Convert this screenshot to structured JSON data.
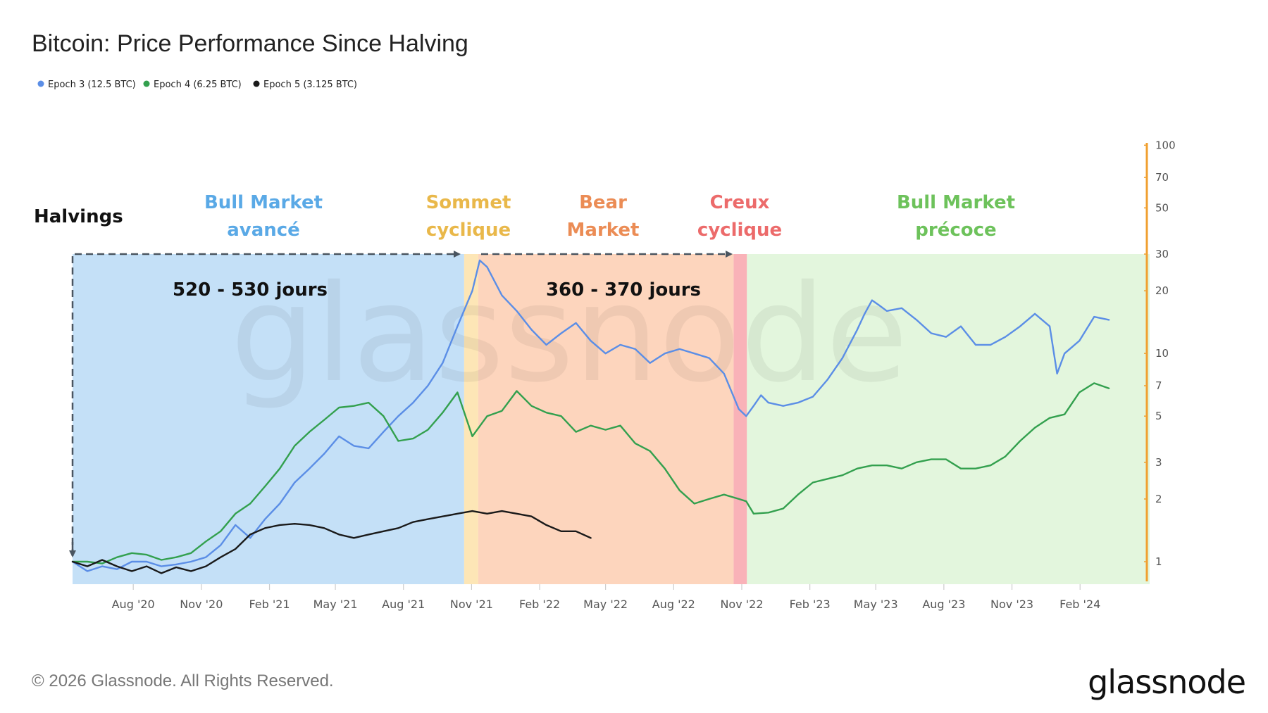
{
  "colors": {
    "epoch3": "#5b8ee6",
    "epoch4": "#33a04e",
    "epoch5": "#1a1a1a",
    "bull_late_bg": "#c4e0f7",
    "top_bg": "#fde6b6",
    "bear_bg": "#fdd5bd",
    "trough_bg": "#f9b2b8",
    "bull_early_bg": "#e3f6dd",
    "axis_right": "#f0a030",
    "bull_late_text": "#5aa9e6",
    "top_text": "#e9b84a",
    "bear_text": "#eb8c55",
    "trough_text": "#ec6b6b",
    "bull_early_text": "#6dc25b",
    "arrow": "#4a5560"
  },
  "chart_data": {
    "type": "line",
    "title": "Bitcoin: Price Performance Since Halving",
    "y_scale": "log",
    "ylim": [
      0.78,
      100
    ],
    "y_ticks": [
      1,
      2,
      3,
      5,
      7,
      10,
      20,
      30,
      50,
      70,
      100
    ],
    "y_tick_labels": [
      "1",
      "2",
      "3",
      "5",
      "7",
      "10",
      "20",
      "30",
      "50",
      "70",
      "100"
    ],
    "xlim": [
      0,
      1455
    ],
    "x_unit": "days since halving (aligned to Epoch 3 calendar, start May 11 2020)",
    "x_ticks": [
      82,
      174,
      266,
      355,
      447,
      539,
      631,
      720,
      812,
      904,
      996,
      1085,
      1177,
      1269,
      1361
    ],
    "x_tick_labels": [
      "Aug '20",
      "Nov '20",
      "Feb '21",
      "May '21",
      "Aug '21",
      "Nov '21",
      "Feb '22",
      "May '22",
      "Aug '22",
      "Nov '22",
      "Feb '23",
      "May '23",
      "Aug '23",
      "Nov '23",
      "Feb '24"
    ],
    "legend": [
      {
        "label": "Epoch 3 (12.5 BTC)",
        "color_key": "epoch3"
      },
      {
        "label": "Epoch 4 (6.25 BTC)",
        "color_key": "epoch4"
      },
      {
        "label": "Epoch 5 (3.125 BTC)",
        "color_key": "epoch5"
      }
    ],
    "series": [
      {
        "name": "Epoch 3 (12.5 BTC)",
        "color_key": "epoch3",
        "x": [
          0,
          20,
          40,
          60,
          80,
          100,
          120,
          140,
          160,
          180,
          200,
          220,
          240,
          260,
          280,
          300,
          320,
          340,
          360,
          380,
          400,
          420,
          440,
          460,
          480,
          500,
          520,
          540,
          550,
          560,
          580,
          600,
          620,
          640,
          660,
          680,
          700,
          720,
          740,
          760,
          780,
          800,
          820,
          840,
          860,
          880,
          900,
          910,
          920,
          930,
          940,
          960,
          980,
          1000,
          1020,
          1040,
          1060,
          1070,
          1080,
          1090,
          1100,
          1120,
          1140,
          1160,
          1180,
          1200,
          1220,
          1240,
          1260,
          1280,
          1300,
          1320,
          1330,
          1340,
          1360,
          1380,
          1400
        ],
        "values": [
          1.0,
          0.9,
          0.95,
          0.92,
          1.0,
          1.0,
          0.95,
          0.97,
          1.0,
          1.05,
          1.2,
          1.5,
          1.3,
          1.6,
          1.9,
          2.4,
          2.8,
          3.3,
          4.0,
          3.6,
          3.5,
          4.2,
          5.0,
          5.8,
          7.0,
          9.0,
          13.5,
          20.0,
          28.0,
          26.0,
          19.0,
          16.0,
          13.0,
          11.0,
          12.5,
          14.0,
          11.5,
          10.0,
          11.0,
          10.5,
          9.0,
          10.0,
          10.5,
          10.0,
          9.5,
          8.0,
          5.4,
          5.0,
          5.6,
          6.3,
          5.8,
          5.6,
          5.8,
          6.2,
          7.5,
          9.5,
          13.0,
          15.5,
          18.0,
          17.0,
          16.0,
          16.5,
          14.5,
          12.5,
          12.0,
          13.5,
          11.0,
          11.0,
          12.0,
          13.5,
          15.5,
          13.5,
          8.0,
          10.0,
          11.5,
          15.0,
          14.5
        ]
      },
      {
        "name": "Epoch 4 (6.25 BTC)",
        "color_key": "epoch4",
        "x": [
          0,
          20,
          40,
          60,
          80,
          100,
          120,
          140,
          160,
          180,
          200,
          220,
          240,
          260,
          280,
          300,
          320,
          340,
          360,
          380,
          400,
          420,
          440,
          460,
          480,
          500,
          520,
          540,
          560,
          580,
          600,
          620,
          640,
          660,
          680,
          700,
          720,
          740,
          760,
          780,
          800,
          820,
          840,
          860,
          880,
          900,
          910,
          920,
          940,
          960,
          980,
          1000,
          1020,
          1040,
          1060,
          1080,
          1100,
          1120,
          1140,
          1160,
          1180,
          1200,
          1220,
          1240,
          1260,
          1280,
          1300,
          1320,
          1340,
          1360,
          1380,
          1400
        ],
        "values": [
          1.0,
          1.0,
          0.98,
          1.05,
          1.1,
          1.08,
          1.02,
          1.05,
          1.1,
          1.25,
          1.4,
          1.7,
          1.9,
          2.3,
          2.8,
          3.6,
          4.2,
          4.8,
          5.5,
          5.6,
          5.8,
          5.0,
          3.8,
          3.9,
          4.3,
          5.2,
          6.5,
          4.0,
          5.0,
          5.3,
          6.6,
          5.6,
          5.2,
          5.0,
          4.2,
          4.5,
          4.3,
          4.5,
          3.7,
          3.4,
          2.8,
          2.2,
          1.9,
          2.0,
          2.1,
          2.0,
          1.95,
          1.7,
          1.72,
          1.8,
          2.1,
          2.4,
          2.5,
          2.6,
          2.8,
          2.9,
          2.9,
          2.8,
          3.0,
          3.1,
          3.1,
          2.8,
          2.8,
          2.9,
          3.2,
          3.8,
          4.4,
          4.9,
          5.1,
          6.5,
          7.2,
          6.8
        ]
      },
      {
        "name": "Epoch 5 (3.125 BTC)",
        "color_key": "epoch5",
        "x": [
          0,
          20,
          40,
          60,
          80,
          100,
          120,
          140,
          160,
          180,
          200,
          220,
          240,
          260,
          280,
          300,
          320,
          340,
          360,
          380,
          400,
          420,
          440,
          460,
          480,
          500,
          520,
          540,
          560,
          580,
          600,
          620,
          640,
          660,
          680,
          700
        ],
        "values": [
          1.0,
          0.95,
          1.02,
          0.95,
          0.9,
          0.95,
          0.88,
          0.94,
          0.9,
          0.95,
          1.05,
          1.15,
          1.35,
          1.45,
          1.5,
          1.52,
          1.5,
          1.45,
          1.35,
          1.3,
          1.35,
          1.4,
          1.45,
          1.55,
          1.6,
          1.65,
          1.7,
          1.75,
          1.7,
          1.75,
          1.7,
          1.65,
          1.5,
          1.4,
          1.4,
          1.3
        ]
      }
    ],
    "phases": [
      {
        "name": "bull_late",
        "x0": 0,
        "x1": 529,
        "line1": "Bull Market",
        "line2": "avancé",
        "bg_key": "bull_late_bg",
        "text_key": "bull_late_text"
      },
      {
        "name": "top",
        "x0": 529,
        "x1": 548,
        "line1": "Sommet",
        "line2": "cyclique",
        "bg_key": "top_bg",
        "text_key": "top_text"
      },
      {
        "name": "bear",
        "x0": 548,
        "x1": 893,
        "line1": "Bear",
        "line2": "Market",
        "bg_key": "bear_bg",
        "text_key": "bear_text"
      },
      {
        "name": "trough",
        "x0": 893,
        "x1": 911,
        "line1": "Creux",
        "line2": "cyclique",
        "bg_key": "trough_bg",
        "text_key": "trough_text"
      },
      {
        "name": "bull_early",
        "x0": 911,
        "x1": 1455,
        "line1": "Bull Market",
        "line2": "précoce",
        "bg_key": "bull_early_bg",
        "text_key": "bull_early_text"
      }
    ],
    "annotations": {
      "halvings": "Halvings",
      "span1": "520 - 530 jours",
      "span2": "360 - 370 jours"
    }
  },
  "watermark": "glassnode",
  "footer": {
    "copyright": "© 2026 Glassnode. All Rights Reserved.",
    "brand": "glassnode"
  }
}
